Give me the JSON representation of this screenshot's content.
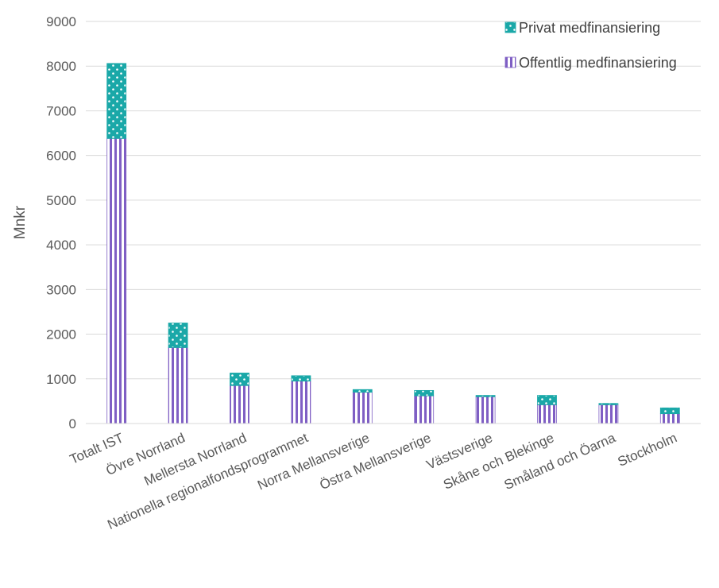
{
  "chart_data": {
    "type": "bar",
    "stacked": true,
    "ylabel": "Mnkr",
    "ylim": [
      0,
      9000
    ],
    "yticks": [
      0,
      1000,
      2000,
      3000,
      4000,
      5000,
      6000,
      7000,
      8000,
      9000
    ],
    "grid": true,
    "legend_position": "top-right",
    "categories": [
      "Totalt IST",
      "Övre Norrland",
      "Mellersta Norrland",
      "Nationella regionalfondsprogrammet",
      "Norra Mellansverige",
      "Östra Mellansverige",
      "Västsverige",
      "Skåne och Blekinge",
      "Småland och Öarna",
      "Stockholm"
    ],
    "series": [
      {
        "name": "Offentlig medfinansiering",
        "color": "#7f5fc4",
        "pattern": "vertical-stripes",
        "values": [
          6380,
          1700,
          850,
          950,
          700,
          620,
          600,
          420,
          420,
          220
        ]
      },
      {
        "name": "Privat medfinansiering",
        "color": "#1aa8a8",
        "pattern": "dotted",
        "values": [
          1680,
          550,
          280,
          120,
          60,
          120,
          30,
          210,
          30,
          130
        ]
      }
    ],
    "legend": [
      {
        "label": "Privat medfinansiering",
        "series": 1
      },
      {
        "label": "Offentlig medfinansiering",
        "series": 0
      }
    ]
  }
}
